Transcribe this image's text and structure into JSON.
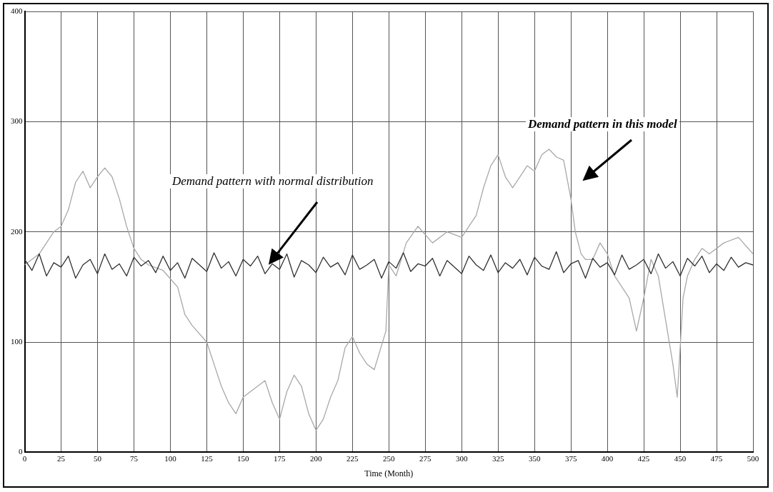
{
  "chart_data": {
    "type": "line",
    "xlabel": "Time (Month)",
    "xlim": [
      0,
      500
    ],
    "xticks": [
      0,
      25,
      50,
      75,
      100,
      125,
      150,
      175,
      200,
      225,
      250,
      275,
      300,
      325,
      350,
      375,
      400,
      425,
      450,
      475,
      500
    ],
    "ylim": [
      0,
      400
    ],
    "yticks": [
      0,
      100,
      200,
      300,
      400
    ],
    "grid": true,
    "legend": false,
    "marker": "none",
    "line_style": "solid",
    "series": [
      {
        "color": "#303030",
        "x": [
          0,
          5,
          10,
          15,
          20,
          25,
          30,
          35,
          40,
          45,
          50,
          55,
          60,
          65,
          70,
          75,
          80,
          85,
          90,
          95,
          100,
          105,
          110,
          115,
          120,
          125,
          130,
          135,
          140,
          145,
          150,
          155,
          160,
          165,
          170,
          175,
          180,
          185,
          190,
          195,
          200,
          205,
          210,
          215,
          220,
          225,
          230,
          235,
          240,
          245,
          250,
          255,
          260,
          265,
          270,
          275,
          280,
          285,
          290,
          295,
          300,
          305,
          310,
          315,
          320,
          325,
          330,
          335,
          340,
          345,
          350,
          355,
          360,
          365,
          370,
          375,
          380,
          385,
          390,
          395,
          400,
          405,
          410,
          415,
          420,
          425,
          430,
          435,
          440,
          445,
          450,
          455,
          460,
          465,
          470,
          475,
          480,
          485,
          490,
          495,
          500
        ],
        "values": [
          175,
          165,
          180,
          160,
          172,
          168,
          178,
          158,
          170,
          175,
          162,
          180,
          166,
          171,
          160,
          177,
          169,
          174,
          163,
          178,
          165,
          172,
          158,
          176,
          170,
          164,
          181,
          167,
          173,
          160,
          175,
          169,
          178,
          162,
          171,
          166,
          180,
          159,
          174,
          170,
          163,
          177,
          168,
          172,
          161,
          179,
          166,
          170,
          175,
          158,
          173,
          167,
          181,
          164,
          171,
          169,
          176,
          160,
          174,
          168,
          162,
          178,
          170,
          165,
          179,
          163,
          172,
          167,
          175,
          161,
          177,
          169,
          166,
          182,
          163,
          171,
          174,
          158,
          176,
          168,
          172,
          161,
          179,
          166,
          170,
          175,
          162,
          180,
          167,
          173,
          160,
          176,
          169,
          178,
          163,
          171,
          165,
          177,
          168,
          172,
          170
        ]
      },
      {
        "color": "#a8a8a8",
        "x": [
          0,
          10,
          20,
          25,
          30,
          35,
          40,
          45,
          50,
          55,
          60,
          65,
          70,
          75,
          80,
          85,
          95,
          105,
          110,
          115,
          125,
          130,
          135,
          140,
          145,
          150,
          160,
          165,
          170,
          175,
          180,
          185,
          190,
          195,
          200,
          205,
          210,
          215,
          220,
          225,
          230,
          235,
          240,
          248,
          250,
          255,
          262,
          270,
          280,
          290,
          300,
          310,
          315,
          320,
          325,
          330,
          335,
          340,
          345,
          350,
          355,
          360,
          365,
          370,
          375,
          378,
          382,
          385,
          390,
          395,
          400,
          405,
          410,
          415,
          420,
          425,
          430,
          435,
          440,
          445,
          448,
          452,
          455,
          460,
          465,
          470,
          480,
          490,
          500
        ],
        "values": [
          170,
          180,
          200,
          205,
          220,
          245,
          255,
          240,
          250,
          258,
          250,
          230,
          205,
          185,
          175,
          170,
          165,
          150,
          125,
          115,
          100,
          80,
          60,
          45,
          35,
          50,
          60,
          65,
          45,
          30,
          55,
          70,
          60,
          35,
          20,
          30,
          50,
          65,
          95,
          105,
          90,
          80,
          75,
          110,
          170,
          160,
          190,
          205,
          190,
          200,
          195,
          215,
          240,
          260,
          270,
          250,
          240,
          250,
          260,
          255,
          270,
          275,
          268,
          265,
          230,
          200,
          180,
          175,
          175,
          190,
          180,
          160,
          150,
          140,
          110,
          140,
          175,
          160,
          120,
          80,
          50,
          140,
          160,
          175,
          185,
          180,
          190,
          195,
          180
        ]
      }
    ],
    "annotations": [
      "Demand pattern with normal distribution",
      "Demand pattern in this model"
    ]
  }
}
